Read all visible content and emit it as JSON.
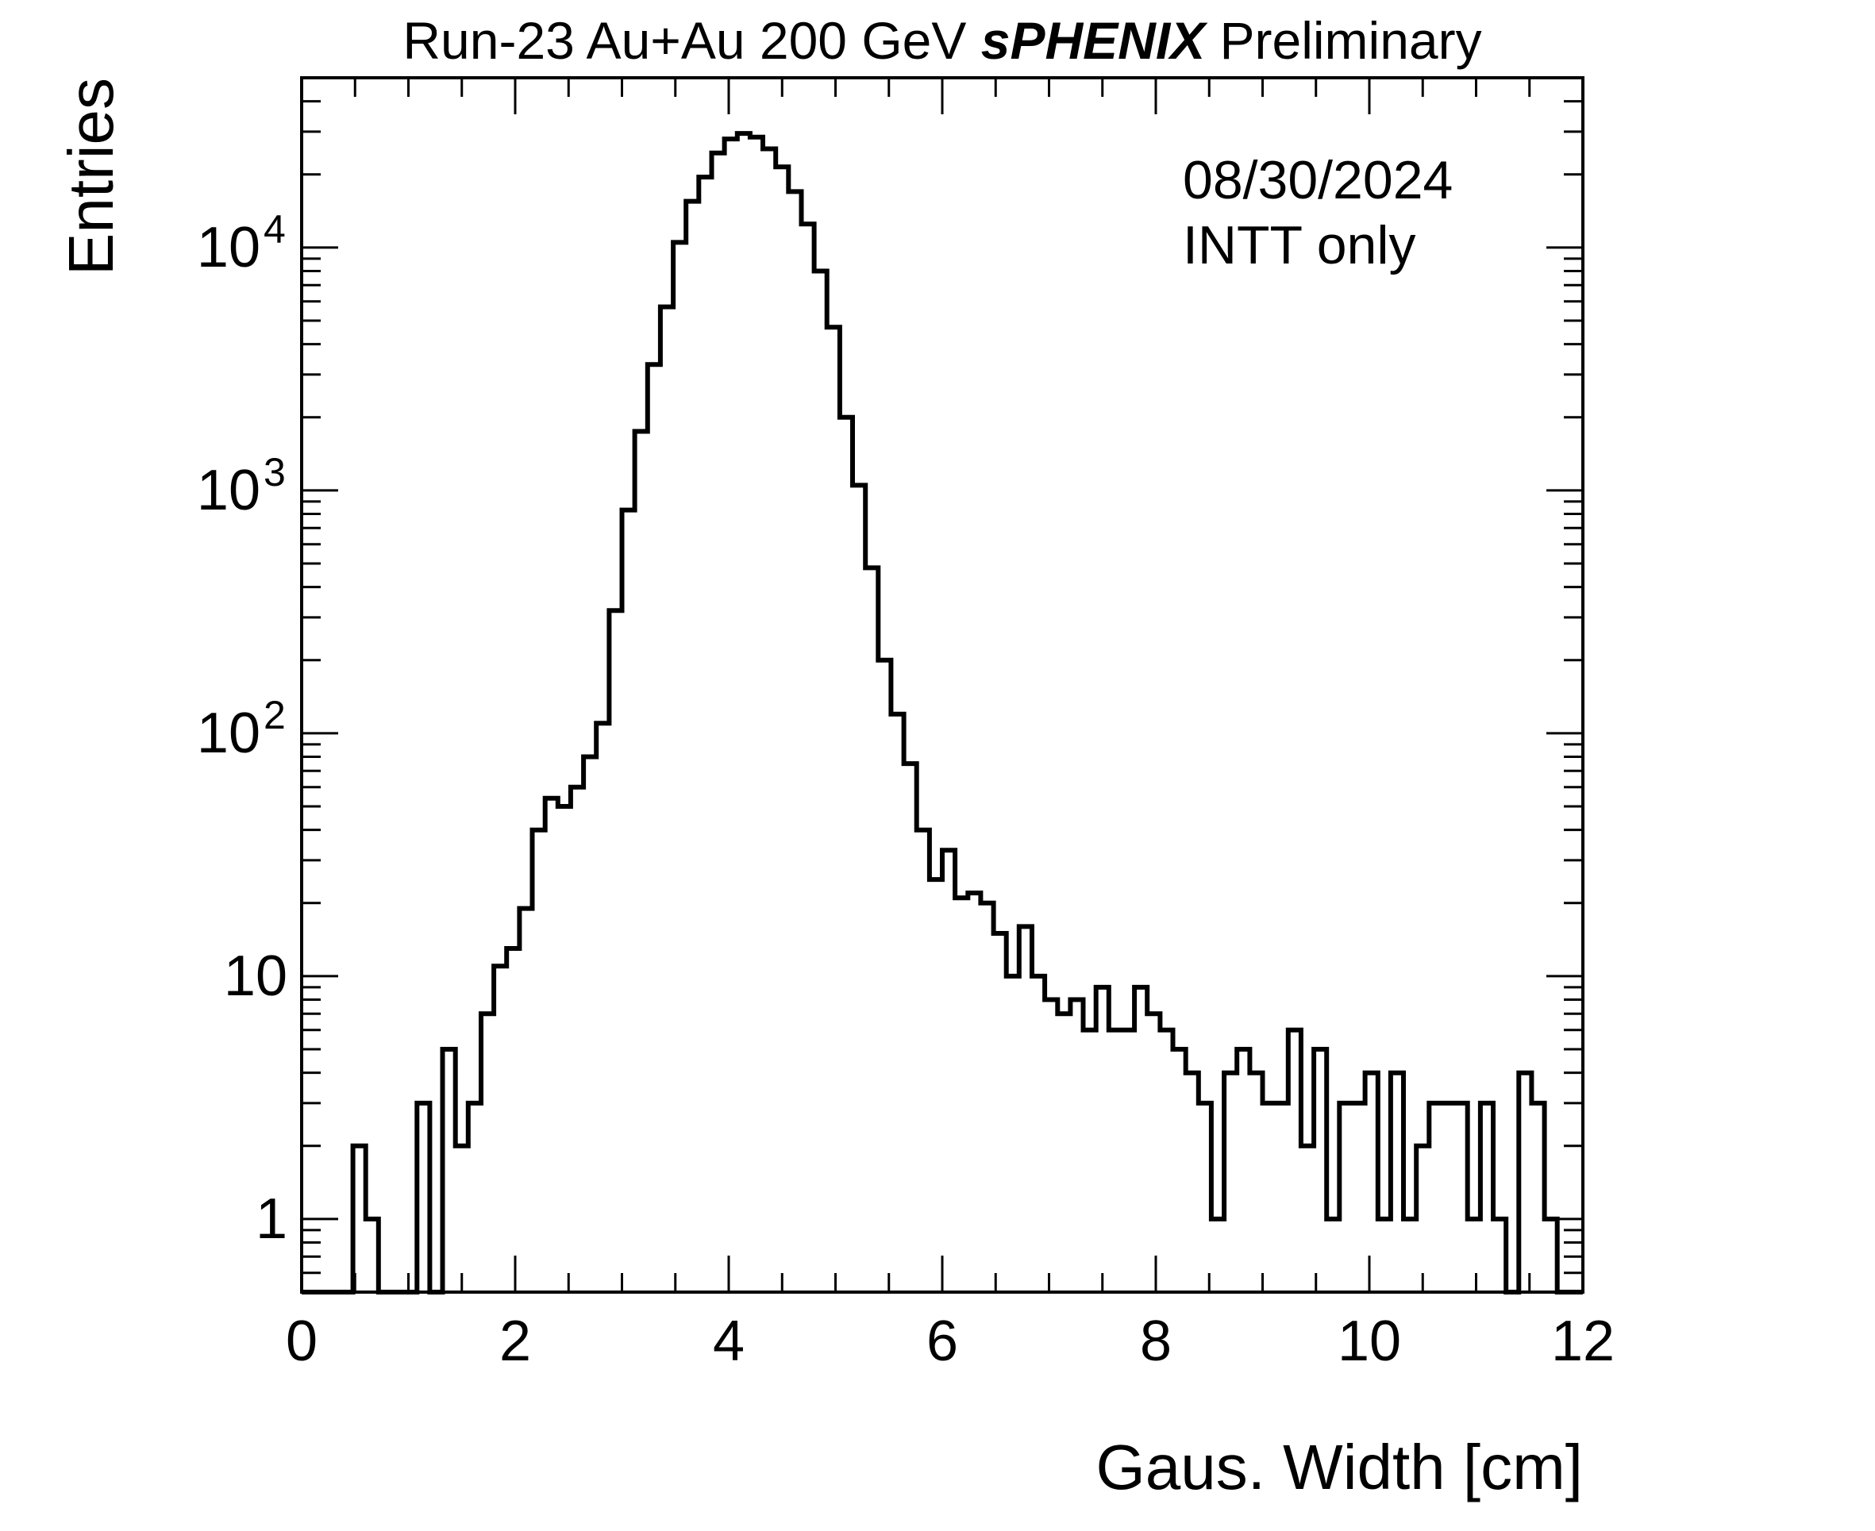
{
  "chart_data": {
    "type": "histogram",
    "title": {
      "prefix": "Run-23 Au+Au 200 GeV ",
      "experiment": "sPHENIX",
      "suffix": " Preliminary"
    },
    "annotations": [
      "08/30/2024",
      "INTT only"
    ],
    "xlabel": "Gaus. Width [cm]",
    "ylabel": "Entries",
    "xlim": [
      0,
      12
    ],
    "ylim": [
      0.5,
      50000
    ],
    "log_y": true,
    "grid": false,
    "legend": "none",
    "x_ticks": [
      "0",
      "2",
      "4",
      "6",
      "8",
      "10",
      "12"
    ],
    "y_ticks": [
      {
        "value": 1,
        "base": "1",
        "exp": ""
      },
      {
        "value": 10,
        "base": "10",
        "exp": ""
      },
      {
        "value": 100,
        "base": "10",
        "exp": "2"
      },
      {
        "value": 1000,
        "base": "10",
        "exp": "3"
      },
      {
        "value": 10000,
        "base": "10",
        "exp": "4"
      }
    ],
    "line_color": "#000000",
    "bin_width": 0.12,
    "bin_start": 0,
    "values": [
      0,
      0,
      0,
      0,
      2,
      1,
      0,
      0,
      0,
      3,
      0,
      5,
      2,
      3,
      7,
      11,
      13,
      19,
      40,
      54,
      50,
      60,
      80,
      110,
      320,
      830,
      1750,
      3300,
      5700,
      10500,
      15500,
      19500,
      24500,
      28000,
      29500,
      28500,
      25500,
      21500,
      17000,
      12500,
      8000,
      4700,
      2000,
      1050,
      480,
      200,
      120,
      75,
      40,
      25,
      33,
      21,
      22,
      20,
      15,
      10,
      16,
      10,
      8,
      7,
      8,
      6,
      9,
      6,
      6,
      9,
      7,
      6,
      5,
      4,
      3,
      1,
      4,
      5,
      4,
      3,
      3,
      6,
      2,
      5,
      1,
      3,
      3,
      4,
      1,
      4,
      1,
      2,
      3,
      3,
      3,
      1,
      3,
      1,
      0,
      4,
      3,
      1,
      0,
      0
    ]
  }
}
